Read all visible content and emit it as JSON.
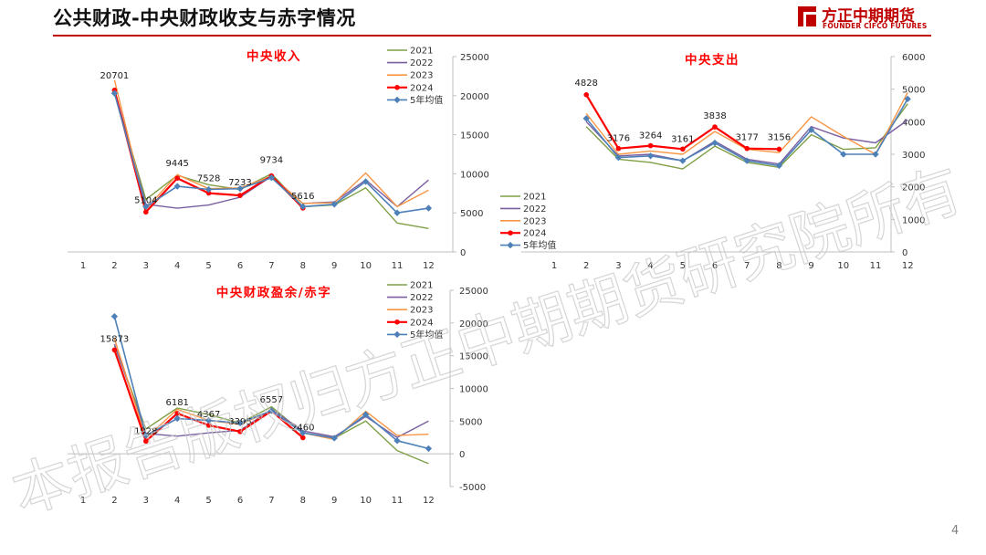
{
  "header": {
    "title": "公共财政-中央财政收支与赤字情况"
  },
  "logo": {
    "cn": "方正中期期货",
    "en": "FOUNDER CIFCO FUTURES",
    "mark": "logo-mark"
  },
  "page_number": "4",
  "watermark": "本报告版权归方正中期期货研究院所有",
  "colors": {
    "s2021": "#7f9f45",
    "s2022": "#7a5fa0",
    "s2023": "#f79646",
    "s2024": "#ff0000",
    "avg": "#4e80b8",
    "title": "#ff0000"
  },
  "chart_data": [
    {
      "type": "line",
      "title": "中央收入",
      "categories": [
        "1",
        "2",
        "3",
        "4",
        "5",
        "6",
        "7",
        "8",
        "9",
        "10",
        "11",
        "12"
      ],
      "ylim": [
        0,
        25000
      ],
      "yticks": [
        "0",
        "5000",
        "10000",
        "15000",
        "20000",
        "25000"
      ],
      "legend_position": "top-right",
      "series": [
        {
          "name": "2021",
          "values": [
            null,
            20500,
            6700,
            9800,
            8600,
            8000,
            10000,
            5800,
            6000,
            8200,
            3700,
            3000
          ]
        },
        {
          "name": "2022",
          "values": [
            null,
            20800,
            6100,
            5600,
            6000,
            7000,
            9700,
            6200,
            6400,
            9200,
            5800,
            9200
          ]
        },
        {
          "name": "2023",
          "values": [
            null,
            22000,
            5500,
            9900,
            8100,
            8200,
            9700,
            6200,
            6300,
            10100,
            5800,
            7900
          ]
        },
        {
          "name": "2024",
          "values": [
            null,
            20701,
            5104,
            9445,
            7528,
            7233,
            9734,
            5616,
            null,
            null,
            null,
            null
          ]
        },
        {
          "name": "5年均值",
          "values": [
            null,
            20300,
            5800,
            8400,
            8000,
            8100,
            9500,
            5800,
            6100,
            9000,
            5000,
            5600
          ]
        }
      ],
      "data_labels": [
        {
          "x": "2",
          "value": "20701"
        },
        {
          "x": "3",
          "value": "5104"
        },
        {
          "x": "4",
          "value": "9445"
        },
        {
          "x": "5",
          "value": "7528"
        },
        {
          "x": "6",
          "value": "7233"
        },
        {
          "x": "7",
          "value": "9734"
        },
        {
          "x": "8",
          "value": "5616"
        }
      ]
    },
    {
      "type": "line",
      "title": "中央支出",
      "categories": [
        "1",
        "2",
        "3",
        "4",
        "5",
        "6",
        "7",
        "8",
        "9",
        "10",
        "11",
        "12"
      ],
      "ylim": [
        0,
        6000
      ],
      "yticks": [
        "0",
        "1000",
        "2000",
        "3000",
        "4000",
        "5000",
        "6000"
      ],
      "legend_position": "left",
      "series": [
        {
          "name": "2021",
          "values": [
            null,
            3850,
            2850,
            2750,
            2550,
            3250,
            2750,
            2600,
            3600,
            3150,
            3200,
            4550
          ]
        },
        {
          "name": "2022",
          "values": [
            null,
            4000,
            2950,
            3000,
            2800,
            3400,
            2850,
            2700,
            3850,
            3500,
            3350,
            4050
          ]
        },
        {
          "name": "2023",
          "values": [
            null,
            4250,
            3000,
            3100,
            3000,
            3700,
            3150,
            3050,
            4150,
            3550,
            3000,
            4900
          ]
        },
        {
          "name": "2024",
          "values": [
            null,
            4828,
            3176,
            3264,
            3161,
            3838,
            3177,
            3156,
            null,
            null,
            null,
            null
          ]
        },
        {
          "name": "5年均值",
          "values": [
            null,
            4100,
            2900,
            2950,
            2800,
            3350,
            2800,
            2650,
            3750,
            3000,
            3000,
            4700
          ]
        }
      ],
      "data_labels": [
        {
          "x": "2",
          "value": "4828"
        },
        {
          "x": "3",
          "value": "3176"
        },
        {
          "x": "4",
          "value": "3264"
        },
        {
          "x": "5",
          "value": "3161"
        },
        {
          "x": "6",
          "value": "3838"
        },
        {
          "x": "7",
          "value": "3177"
        },
        {
          "x": "8",
          "value": "3156"
        }
      ]
    },
    {
      "type": "line",
      "title": "中央财政盈余/赤字",
      "categories": [
        "1",
        "2",
        "3",
        "4",
        "5",
        "6",
        "7",
        "8",
        "9",
        "10",
        "11",
        "12"
      ],
      "ylim": [
        -5000,
        25000
      ],
      "yticks": [
        "-5000",
        "0",
        "5000",
        "10000",
        "15000",
        "20000",
        "25000"
      ],
      "legend_position": "top-right",
      "series": [
        {
          "name": "2021",
          "values": [
            null,
            16600,
            3800,
            7000,
            6000,
            4700,
            7200,
            3200,
            2400,
            5000,
            500,
            -1500
          ]
        },
        {
          "name": "2022",
          "values": [
            null,
            16800,
            3100,
            2700,
            3200,
            3600,
            6800,
            3500,
            2600,
            5700,
            2500,
            5000
          ]
        },
        {
          "name": "2023",
          "values": [
            null,
            17600,
            2400,
            6800,
            5100,
            4500,
            6600,
            3200,
            2200,
            6500,
            2800,
            3000
          ]
        },
        {
          "name": "2024",
          "values": [
            null,
            15873,
            1928,
            6181,
            4367,
            3395,
            6557,
            2460,
            null,
            null,
            null,
            null
          ]
        },
        {
          "name": "5年均值",
          "values": [
            null,
            21000,
            2800,
            5400,
            5100,
            4700,
            6600,
            3200,
            2400,
            6000,
            2000,
            800
          ]
        }
      ],
      "data_labels": [
        {
          "x": "2",
          "value": "15873"
        },
        {
          "x": "3",
          "value": "1928"
        },
        {
          "x": "4",
          "value": "6181"
        },
        {
          "x": "5",
          "value": "4367"
        },
        {
          "x": "6",
          "value": "3395"
        },
        {
          "x": "7",
          "value": "6557"
        },
        {
          "x": "8",
          "value": "2460"
        }
      ]
    }
  ]
}
